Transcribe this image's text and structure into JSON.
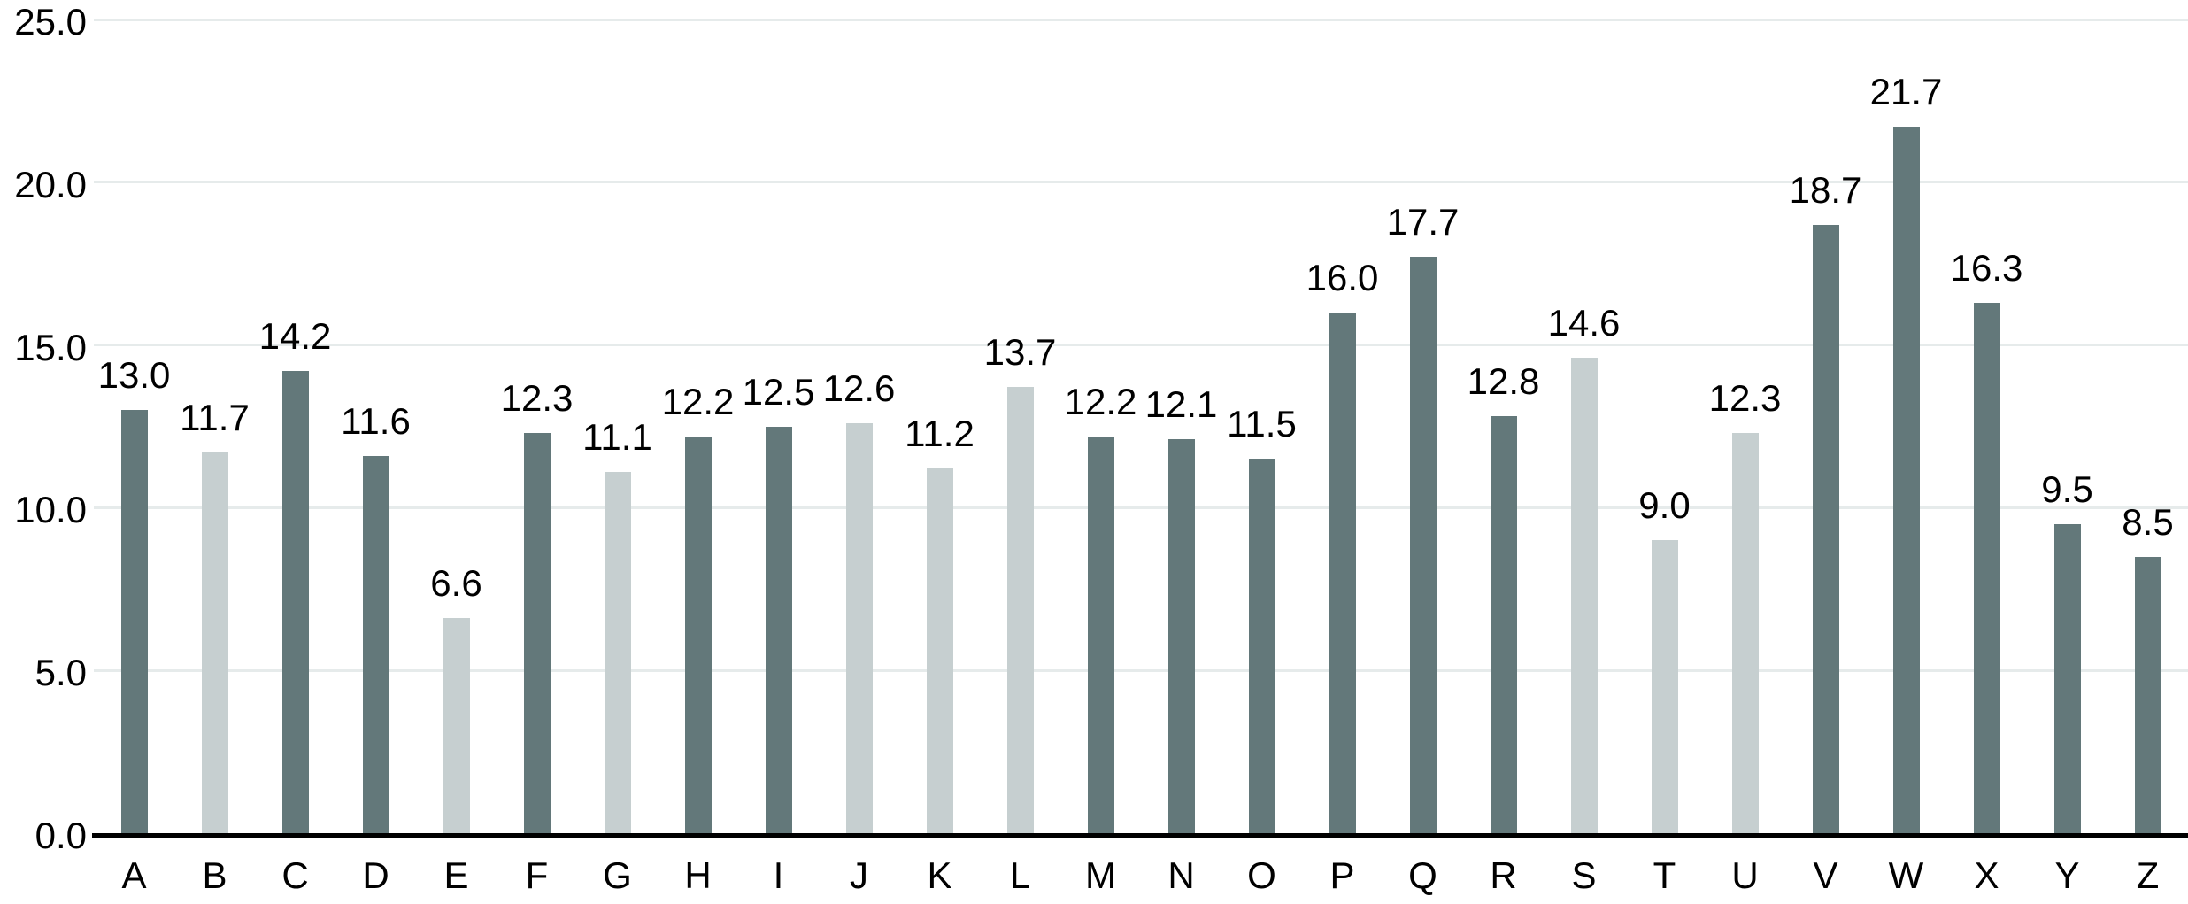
{
  "chart_data": {
    "type": "bar",
    "title": "",
    "xlabel": "",
    "ylabel": "",
    "categories": [
      "A",
      "B",
      "C",
      "D",
      "E",
      "F",
      "G",
      "H",
      "I",
      "J",
      "K",
      "L",
      "M",
      "N",
      "O",
      "P",
      "Q",
      "R",
      "S",
      "T",
      "U",
      "V",
      "W",
      "X",
      "Y",
      "Z"
    ],
    "values": [
      13.0,
      11.7,
      14.2,
      11.6,
      6.6,
      12.3,
      11.1,
      12.2,
      12.5,
      12.6,
      11.2,
      13.7,
      12.2,
      12.1,
      11.5,
      16.0,
      17.7,
      12.8,
      14.6,
      9.0,
      12.3,
      18.7,
      21.7,
      16.3,
      9.5,
      8.5
    ],
    "value_labels": [
      "13.0",
      "11.7",
      "14.2",
      "11.6",
      "6.6",
      "12.3",
      "11.1",
      "12.2",
      "12.5",
      "12.6",
      "11.2",
      "13.7",
      "12.2",
      "12.1",
      "11.5",
      "16.0",
      "17.7",
      "12.8",
      "14.6",
      "9.0",
      "12.3",
      "18.7",
      "21.7",
      "16.3",
      "9.5",
      "8.5"
    ],
    "variants": [
      "dark",
      "light",
      "dark",
      "dark",
      "light",
      "dark",
      "light",
      "dark",
      "dark",
      "light",
      "light",
      "light",
      "dark",
      "dark",
      "dark",
      "dark",
      "dark",
      "dark",
      "light",
      "light",
      "light",
      "dark",
      "dark",
      "dark",
      "dark",
      "dark"
    ],
    "ylim": [
      0,
      25
    ],
    "yticks": [
      0,
      5,
      10,
      15,
      20,
      25
    ],
    "ytick_labels": [
      "0.0",
      "5.0",
      "10.0",
      "15.0",
      "20.0",
      "25.0"
    ],
    "grid": true,
    "legend": "none",
    "colors": {
      "bar_dark": "#63787a",
      "bar_light": "#c6cfd0",
      "gridline": "#e6ebeb",
      "axis_line": "#000000",
      "text": "#000000"
    }
  }
}
